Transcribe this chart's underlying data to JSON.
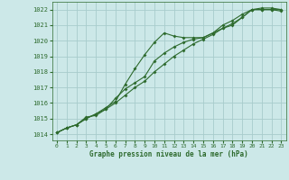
{
  "line1_x": [
    0,
    1,
    2,
    3,
    4,
    5,
    6,
    7,
    8,
    9,
    10,
    11,
    12,
    13,
    14,
    15,
    16,
    17,
    18,
    19,
    20,
    21,
    22,
    23
  ],
  "line1_y": [
    1014.1,
    1014.4,
    1014.6,
    1015.1,
    1015.2,
    1015.6,
    1016.3,
    1016.9,
    1017.3,
    1017.7,
    1018.7,
    1019.2,
    1019.6,
    1019.9,
    1020.1,
    1020.2,
    1020.5,
    1020.8,
    1021.0,
    1021.5,
    1022.0,
    1022.0,
    1022.0,
    1022.0
  ],
  "line2_x": [
    0,
    1,
    2,
    3,
    4,
    5,
    6,
    7,
    8,
    9,
    10,
    11,
    12,
    13,
    14,
    15,
    16,
    17,
    18,
    19,
    20,
    21,
    22,
    23
  ],
  "line2_y": [
    1014.1,
    1014.4,
    1014.6,
    1015.0,
    1015.3,
    1015.7,
    1016.1,
    1017.2,
    1018.2,
    1019.1,
    1019.9,
    1020.5,
    1020.3,
    1020.2,
    1020.2,
    1020.2,
    1020.5,
    1021.0,
    1021.3,
    1021.7,
    1022.0,
    1022.1,
    1022.1,
    1022.0
  ],
  "line3_x": [
    0,
    1,
    2,
    3,
    4,
    5,
    6,
    7,
    8,
    9,
    10,
    11,
    12,
    13,
    14,
    15,
    16,
    17,
    18,
    19,
    20,
    21,
    22,
    23
  ],
  "line3_y": [
    1014.1,
    1014.4,
    1014.6,
    1015.0,
    1015.3,
    1015.6,
    1016.0,
    1016.5,
    1017.0,
    1017.4,
    1018.0,
    1018.5,
    1019.0,
    1019.4,
    1019.8,
    1020.1,
    1020.4,
    1020.8,
    1021.1,
    1021.5,
    1022.0,
    1022.0,
    1022.0,
    1021.9
  ],
  "line_color": "#2d6a2d",
  "bg_color": "#cce8e8",
  "grid_color": "#a8cccc",
  "xlabel": "Graphe pression niveau de la mer (hPa)",
  "yticks": [
    1014,
    1015,
    1016,
    1017,
    1018,
    1019,
    1020,
    1021,
    1022
  ],
  "xticks": [
    0,
    1,
    2,
    3,
    4,
    5,
    6,
    7,
    8,
    9,
    10,
    11,
    12,
    13,
    14,
    15,
    16,
    17,
    18,
    19,
    20,
    21,
    22,
    23
  ],
  "ylim": [
    1013.6,
    1022.5
  ],
  "xlim": [
    -0.5,
    23.5
  ]
}
